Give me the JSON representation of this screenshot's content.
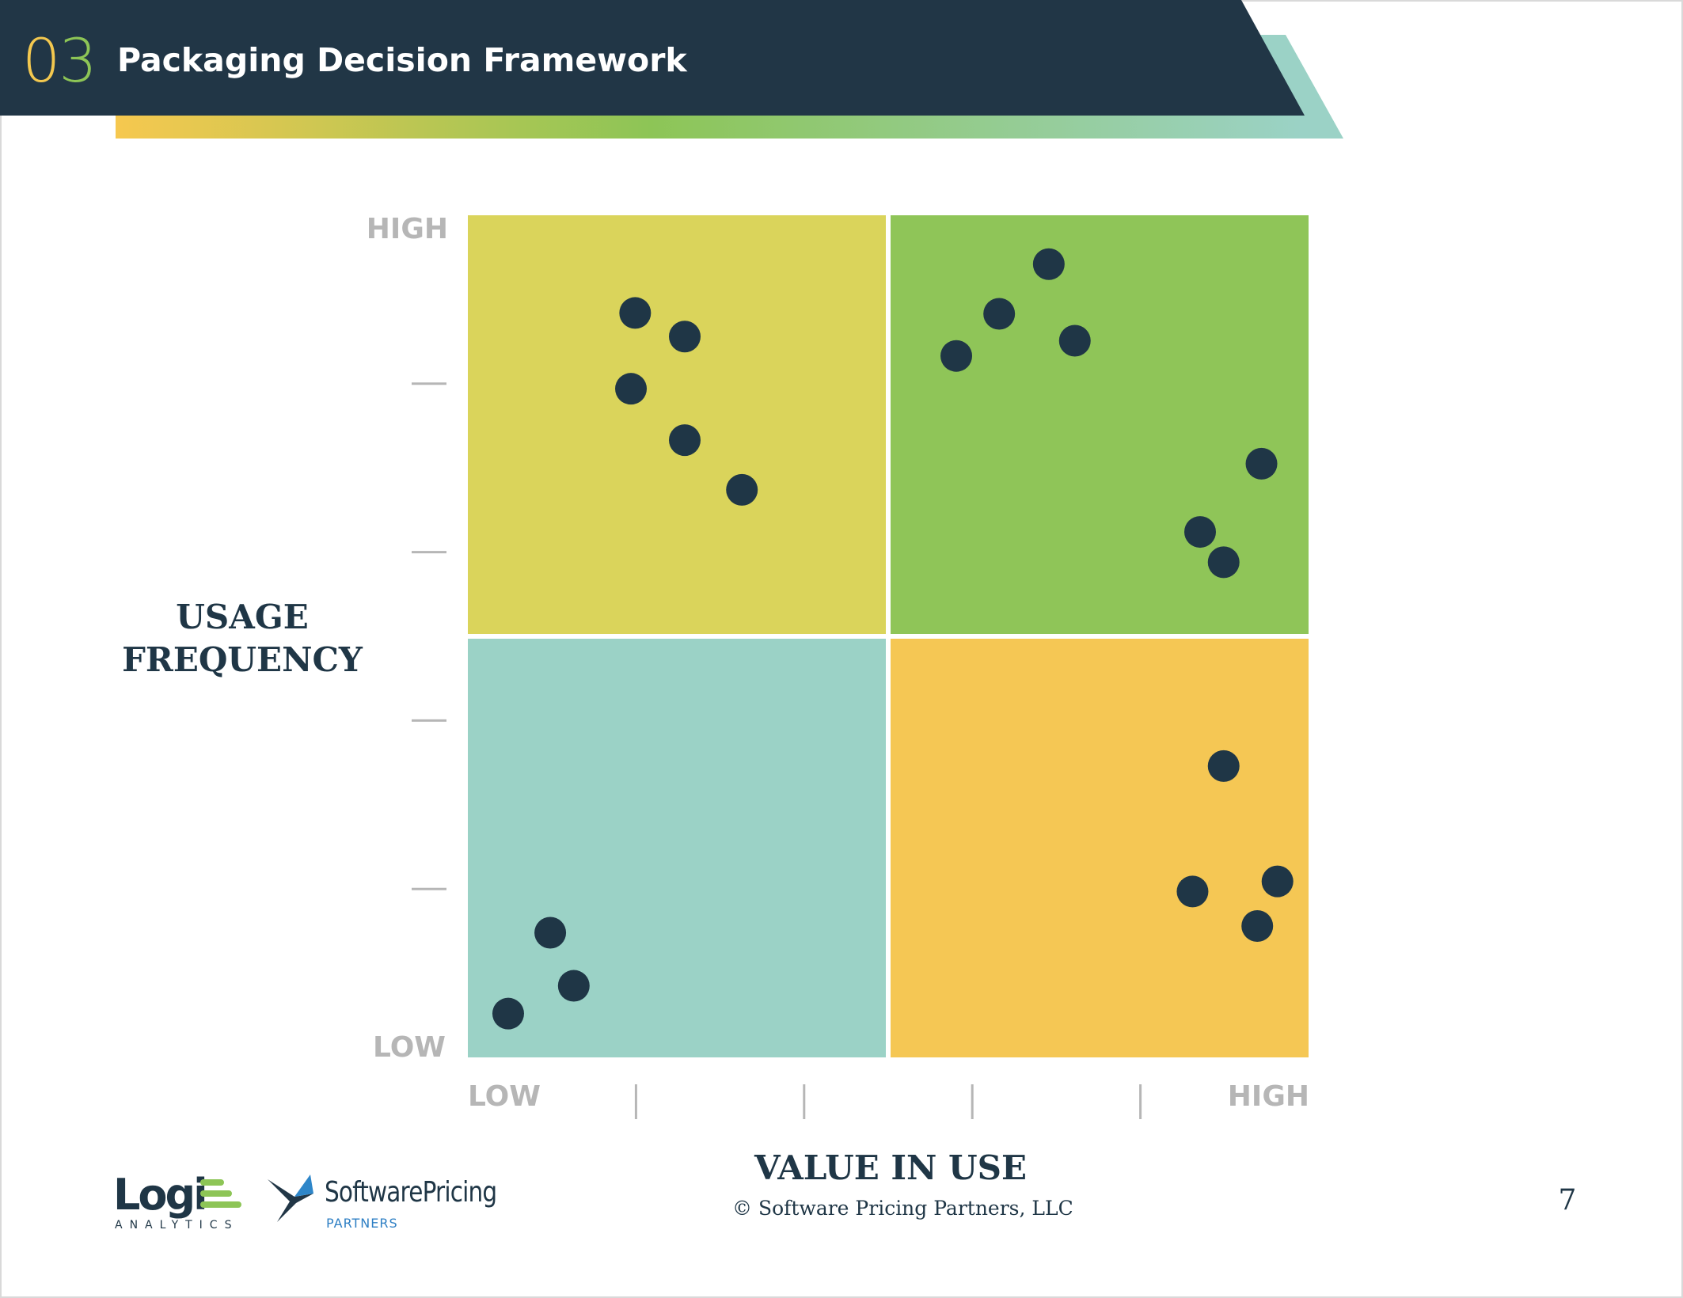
{
  "header": {
    "section_number_part1": "0",
    "section_number_part2": "3",
    "title": "Packaging Decision Framework"
  },
  "colors": {
    "navy": "#213646",
    "teal_accent": "#9bd2c6",
    "gradient": [
      "#f6c84f",
      "#8dc556",
      "#9bd2c6"
    ],
    "quadrant_top_left": "#dad45b",
    "quadrant_top_right": "#8fc558",
    "quadrant_bottom_left": "#9bd2c6",
    "quadrant_bottom_right": "#f5c754",
    "dot": "#1f3646",
    "axis_label_gray": "#b6b6b6"
  },
  "chart_data": {
    "type": "scatter",
    "xlabel": "VALUE IN USE",
    "ylabel_lines": [
      "USAGE",
      "FREQUENCY"
    ],
    "x_tick_labels": {
      "low": "LOW",
      "high": "HIGH"
    },
    "y_tick_labels": {
      "low": "LOW",
      "high": "HIGH"
    },
    "xlim": [
      0,
      1
    ],
    "ylim": [
      0,
      1
    ],
    "grid": false,
    "quadrant_split": {
      "x": 0.5,
      "y": 0.5
    },
    "series": [
      {
        "quadrant": "top-left",
        "points": [
          [
            0.199,
            0.884
          ],
          [
            0.258,
            0.856
          ],
          [
            0.194,
            0.794
          ],
          [
            0.258,
            0.733
          ],
          [
            0.326,
            0.674
          ]
        ]
      },
      {
        "quadrant": "top-right",
        "points": [
          [
            0.691,
            0.942
          ],
          [
            0.632,
            0.883
          ],
          [
            0.722,
            0.851
          ],
          [
            0.581,
            0.833
          ],
          [
            0.944,
            0.705
          ],
          [
            0.871,
            0.624
          ],
          [
            0.899,
            0.588
          ]
        ]
      },
      {
        "quadrant": "bottom-left",
        "points": [
          [
            0.098,
            0.148
          ],
          [
            0.126,
            0.085
          ],
          [
            0.048,
            0.052
          ]
        ]
      },
      {
        "quadrant": "bottom-right",
        "points": [
          [
            0.899,
            0.346
          ],
          [
            0.963,
            0.209
          ],
          [
            0.862,
            0.197
          ],
          [
            0.939,
            0.156
          ]
        ]
      }
    ]
  },
  "footer": {
    "copyright": "© Software Pricing Partners, LLC",
    "page_number": "7",
    "logi_logo": {
      "word": "Logi",
      "sub": "ANALYTICS"
    },
    "spp_logo": {
      "name": "SoftwarePricing",
      "sub": "PARTNERS"
    }
  }
}
